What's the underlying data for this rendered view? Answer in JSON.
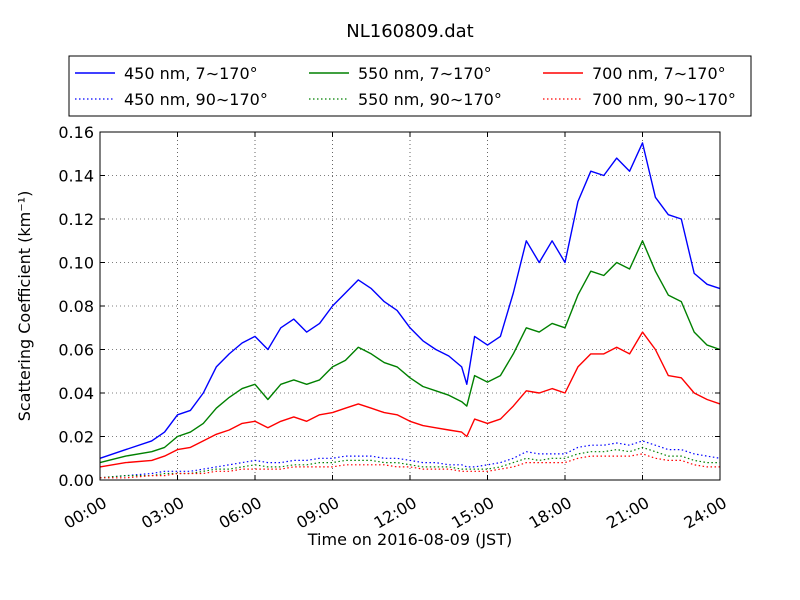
{
  "chart_data": {
    "type": "line",
    "title": "NL160809.dat",
    "xlabel": "Time on 2016-08-09 (JST)",
    "ylabel": "Scattering Coefficient (km⁻¹)",
    "xlim": [
      0,
      24
    ],
    "ylim": [
      0,
      0.16
    ],
    "x_ticks": [
      0,
      3,
      6,
      9,
      12,
      15,
      18,
      21,
      24
    ],
    "x_tick_labels": [
      "00:00",
      "03:00",
      "06:00",
      "09:00",
      "12:00",
      "15:00",
      "18:00",
      "21:00",
      "24:00"
    ],
    "y_ticks": [
      0,
      0.02,
      0.04,
      0.06,
      0.08,
      0.1,
      0.12,
      0.14,
      0.16
    ],
    "y_tick_labels": [
      "0.00",
      "0.02",
      "0.04",
      "0.06",
      "0.08",
      "0.10",
      "0.12",
      "0.14",
      "0.16"
    ],
    "grid": true,
    "legend_position": "top",
    "x": [
      0,
      1,
      2,
      2.5,
      3,
      3.5,
      4,
      4.5,
      5,
      5.5,
      6,
      6.5,
      7,
      7.5,
      8,
      8.5,
      9,
      9.5,
      10,
      10.5,
      11,
      11.5,
      12,
      12.5,
      13,
      13.5,
      14,
      14.2,
      14.5,
      15,
      15.5,
      16,
      16.5,
      17,
      17.5,
      18,
      18.5,
      19,
      19.5,
      20,
      20.5,
      21,
      21.5,
      22,
      22.5,
      23,
      23.5,
      24
    ],
    "series": [
      {
        "name": "450 nm, 7∼170°",
        "color": "#0000ff",
        "style": "solid",
        "values": [
          0.01,
          0.014,
          0.018,
          0.022,
          0.03,
          0.032,
          0.04,
          0.052,
          0.058,
          0.063,
          0.066,
          0.06,
          0.07,
          0.074,
          0.068,
          0.072,
          0.08,
          0.086,
          0.092,
          0.088,
          0.082,
          0.078,
          0.07,
          0.064,
          0.06,
          0.057,
          0.052,
          0.044,
          0.066,
          0.062,
          0.066,
          0.086,
          0.11,
          0.1,
          0.11,
          0.1,
          0.128,
          0.142,
          0.14,
          0.148,
          0.142,
          0.155,
          0.13,
          0.122,
          0.12,
          0.095,
          0.09,
          0.088
        ]
      },
      {
        "name": "450 nm, 90∼170°",
        "color": "#0000ff",
        "style": "dotted",
        "values": [
          0.001,
          0.002,
          0.003,
          0.004,
          0.004,
          0.004,
          0.005,
          0.006,
          0.007,
          0.008,
          0.009,
          0.008,
          0.008,
          0.009,
          0.009,
          0.01,
          0.01,
          0.011,
          0.011,
          0.011,
          0.01,
          0.01,
          0.009,
          0.008,
          0.008,
          0.007,
          0.007,
          0.006,
          0.006,
          0.007,
          0.008,
          0.01,
          0.013,
          0.012,
          0.012,
          0.012,
          0.015,
          0.016,
          0.016,
          0.017,
          0.016,
          0.018,
          0.016,
          0.014,
          0.014,
          0.012,
          0.011,
          0.01
        ]
      },
      {
        "name": "550 nm, 7∼170°",
        "color": "#008000",
        "style": "solid",
        "values": [
          0.008,
          0.011,
          0.013,
          0.015,
          0.02,
          0.022,
          0.026,
          0.033,
          0.038,
          0.042,
          0.044,
          0.037,
          0.044,
          0.046,
          0.044,
          0.046,
          0.052,
          0.055,
          0.061,
          0.058,
          0.054,
          0.052,
          0.047,
          0.043,
          0.041,
          0.039,
          0.036,
          0.034,
          0.048,
          0.045,
          0.048,
          0.058,
          0.07,
          0.068,
          0.072,
          0.07,
          0.085,
          0.096,
          0.094,
          0.1,
          0.097,
          0.11,
          0.096,
          0.085,
          0.082,
          0.068,
          0.062,
          0.06
        ]
      },
      {
        "name": "550 nm, 90∼170°",
        "color": "#008000",
        "style": "dotted",
        "values": [
          0.001,
          0.002,
          0.002,
          0.003,
          0.003,
          0.003,
          0.004,
          0.005,
          0.005,
          0.006,
          0.007,
          0.006,
          0.006,
          0.007,
          0.007,
          0.008,
          0.008,
          0.009,
          0.009,
          0.009,
          0.008,
          0.008,
          0.007,
          0.006,
          0.006,
          0.006,
          0.005,
          0.005,
          0.005,
          0.005,
          0.006,
          0.008,
          0.01,
          0.009,
          0.01,
          0.01,
          0.012,
          0.013,
          0.013,
          0.014,
          0.013,
          0.015,
          0.013,
          0.011,
          0.011,
          0.009,
          0.008,
          0.008
        ]
      },
      {
        "name": "700 nm, 7∼170°",
        "color": "#ff0000",
        "style": "solid",
        "values": [
          0.006,
          0.008,
          0.009,
          0.011,
          0.014,
          0.015,
          0.018,
          0.021,
          0.023,
          0.026,
          0.027,
          0.024,
          0.027,
          0.029,
          0.027,
          0.03,
          0.031,
          0.033,
          0.035,
          0.033,
          0.031,
          0.03,
          0.027,
          0.025,
          0.024,
          0.023,
          0.022,
          0.02,
          0.028,
          0.026,
          0.028,
          0.034,
          0.041,
          0.04,
          0.042,
          0.04,
          0.052,
          0.058,
          0.058,
          0.061,
          0.058,
          0.068,
          0.06,
          0.048,
          0.047,
          0.04,
          0.037,
          0.035
        ]
      },
      {
        "name": "700 nm, 90∼170°",
        "color": "#ff0000",
        "style": "dotted",
        "values": [
          0.001,
          0.001,
          0.002,
          0.002,
          0.003,
          0.003,
          0.003,
          0.004,
          0.004,
          0.005,
          0.005,
          0.005,
          0.005,
          0.006,
          0.006,
          0.006,
          0.006,
          0.007,
          0.007,
          0.007,
          0.007,
          0.006,
          0.006,
          0.005,
          0.005,
          0.005,
          0.004,
          0.004,
          0.004,
          0.004,
          0.005,
          0.006,
          0.008,
          0.008,
          0.008,
          0.008,
          0.01,
          0.011,
          0.011,
          0.011,
          0.011,
          0.012,
          0.01,
          0.009,
          0.009,
          0.007,
          0.006,
          0.006
        ]
      }
    ]
  }
}
